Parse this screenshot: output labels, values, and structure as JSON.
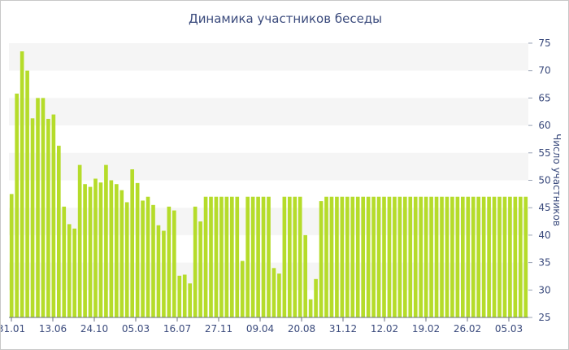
{
  "chart_data": {
    "type": "bar",
    "title": "Динамика участников беседы",
    "ylabel": "Число участников",
    "xlabel": "",
    "ylim": [
      25,
      75
    ],
    "y_ticks": [
      25,
      30,
      35,
      40,
      45,
      50,
      55,
      60,
      65,
      70,
      75
    ],
    "grid": "alternating horizontal bands",
    "y_axis_position": "right",
    "x_tick_labels": [
      "31.01",
      "13.06",
      "24.10",
      "05.03",
      "16.07",
      "27.11",
      "09.04",
      "20.08",
      "31.12",
      "12.02",
      "19.02",
      "26.02",
      "05.03"
    ],
    "bar_color": "#b5dc2a",
    "band_color": "#f5f5f5",
    "values": [
      47.5,
      65.8,
      73.5,
      70,
      61.3,
      65,
      65,
      61.2,
      62,
      56.3,
      45.2,
      42,
      41.2,
      52.8,
      49.3,
      48.8,
      50.3,
      49.6,
      52.8,
      50,
      49.3,
      48.2,
      46,
      52,
      49.5,
      46.3,
      47,
      45.5,
      41.8,
      40.8,
      45.2,
      44.5,
      32.6,
      32.8,
      31.2,
      45.2,
      42.5,
      47,
      47,
      47,
      47,
      47,
      47,
      47,
      35.3,
      47,
      47,
      47,
      47,
      47,
      34,
      33,
      47,
      47,
      47,
      47,
      40,
      28.3,
      32,
      46.2,
      47,
      47,
      47,
      47,
      47,
      47,
      47,
      47,
      47,
      47,
      47,
      47,
      47,
      47,
      47,
      47,
      47,
      47,
      47,
      47,
      47,
      47,
      47,
      47,
      47,
      47,
      47,
      47,
      47,
      47,
      47,
      47,
      47,
      47,
      47,
      47,
      47,
      47,
      47
    ]
  }
}
